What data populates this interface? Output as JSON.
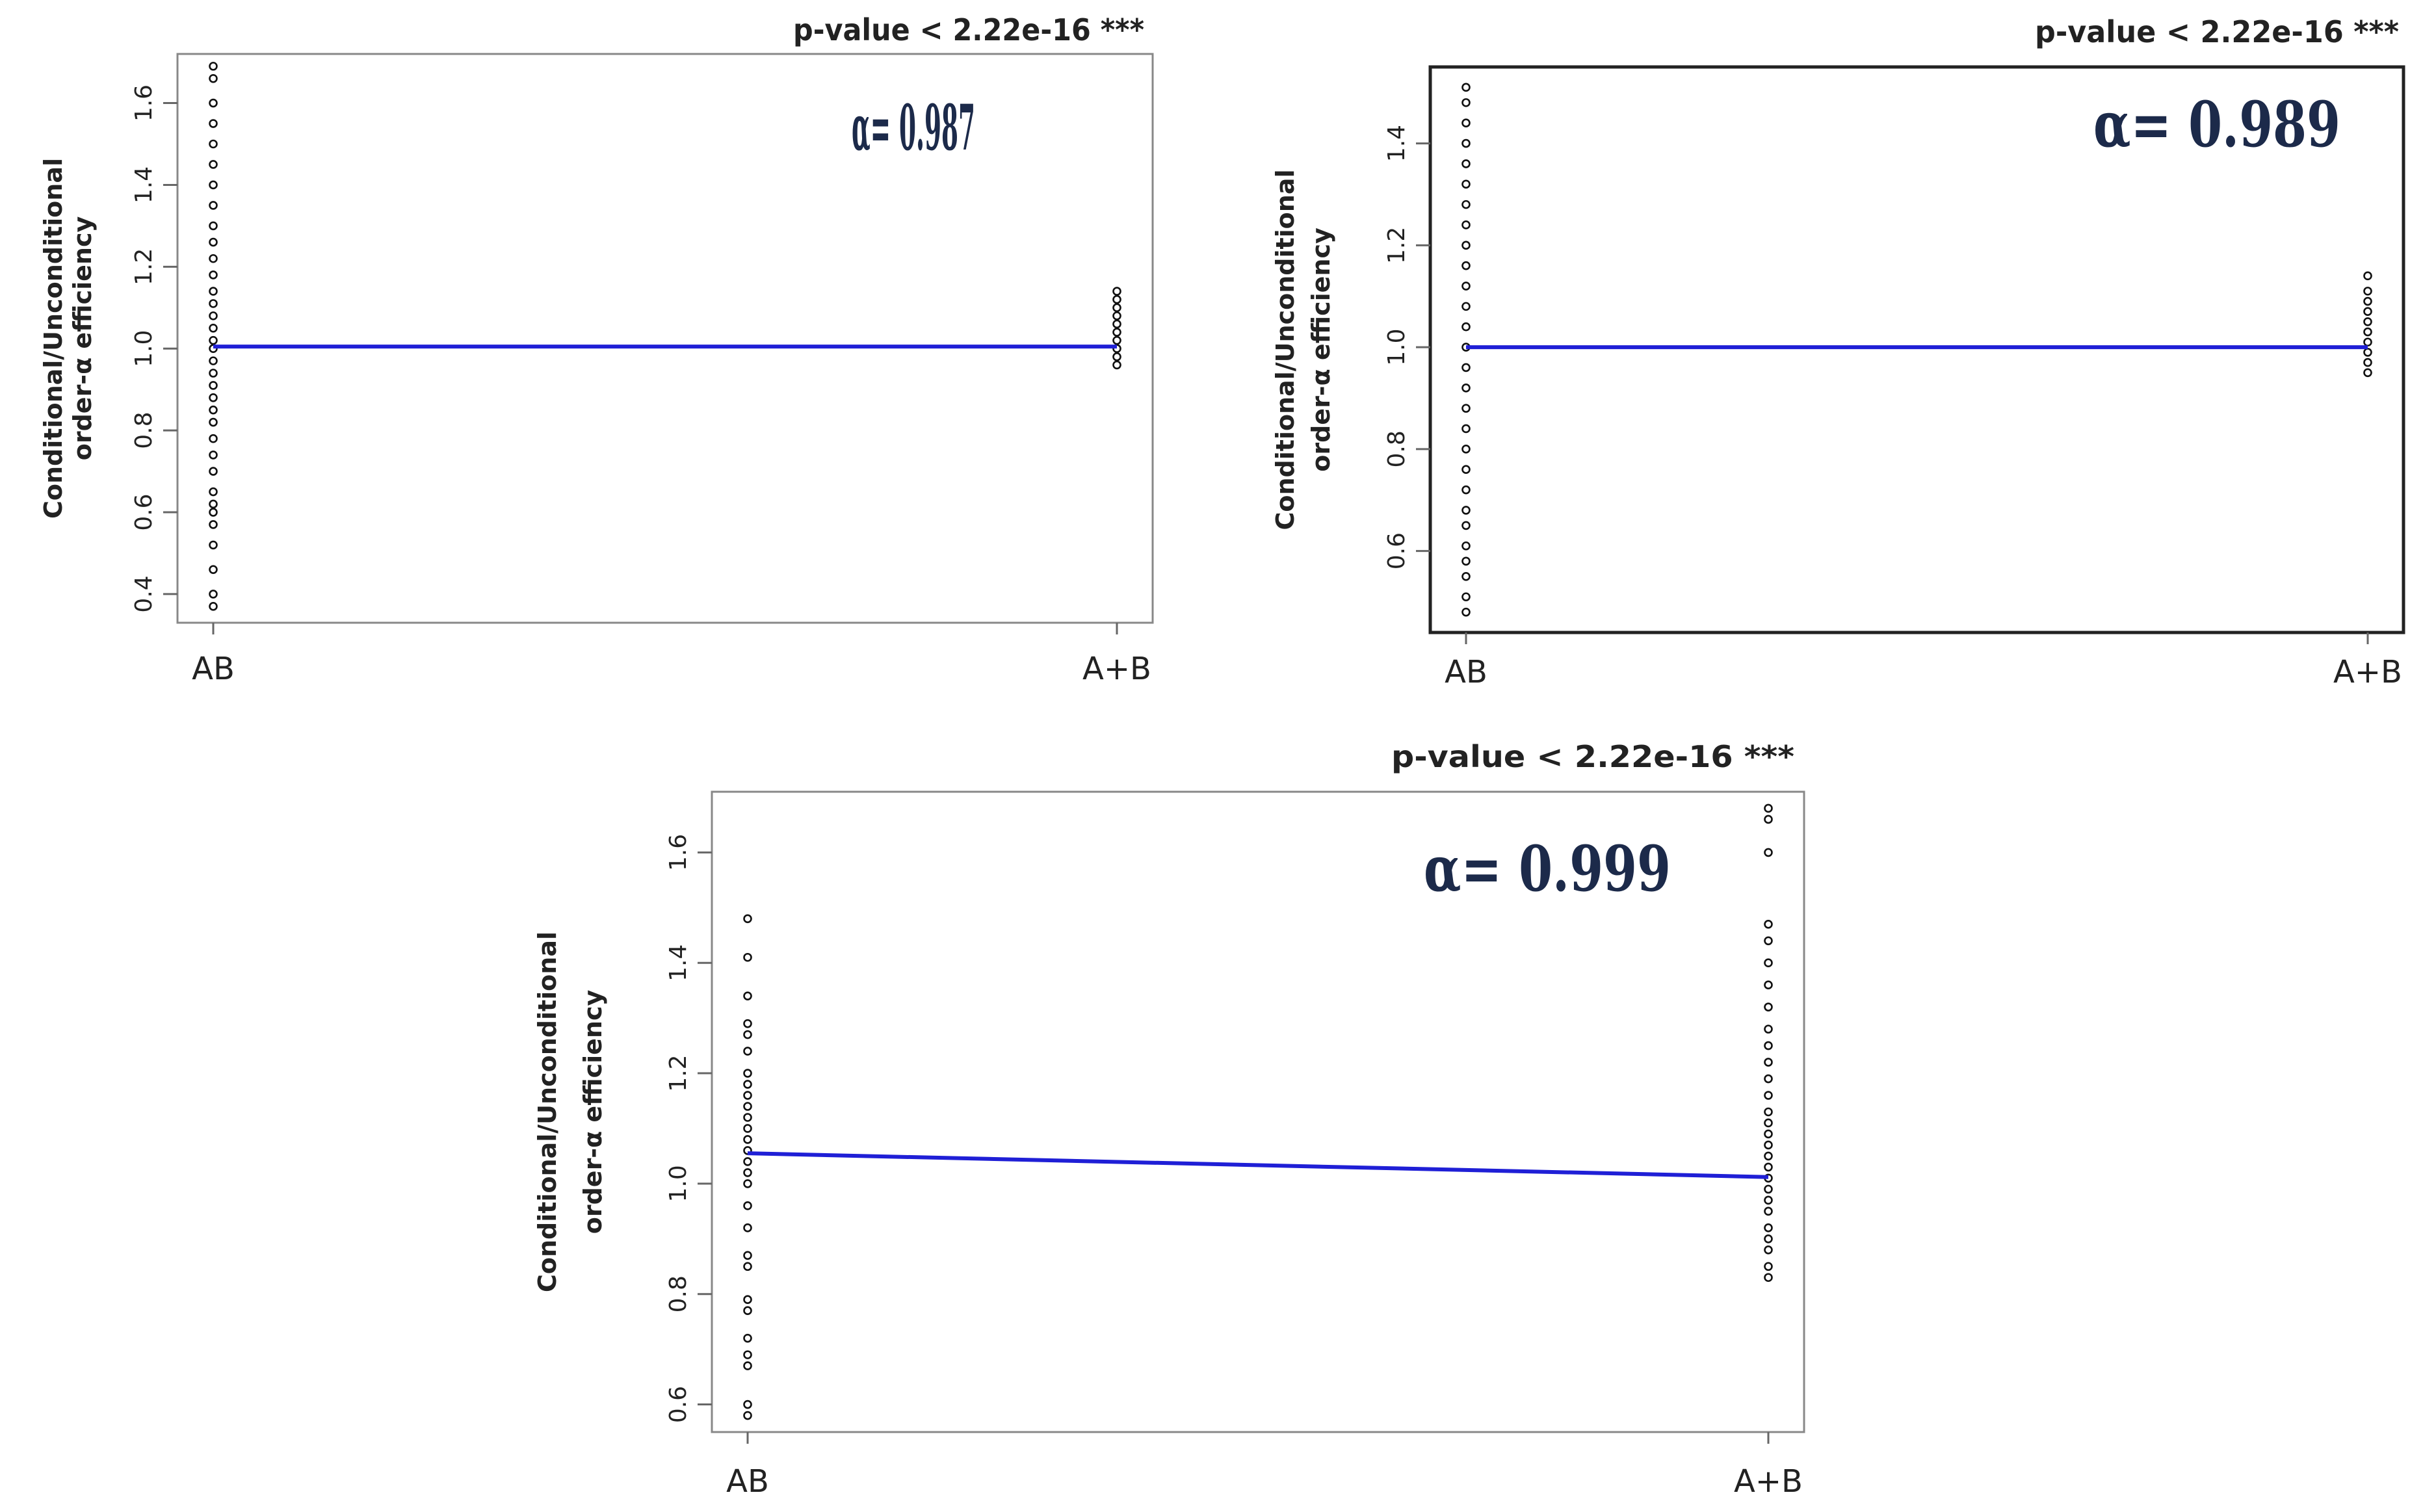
{
  "chart_data": [
    {
      "type": "scatter",
      "title": "p-value < 2.22e-16 ***",
      "annotation": "α= 0.987",
      "ylabel_lines": [
        "Conditional/Unconditional",
        "order-α efficiency"
      ],
      "categories": [
        "AB",
        "A+B"
      ],
      "yticks": [
        "0.4",
        "0.6",
        "0.8",
        "1.0",
        "1.2",
        "1.4",
        "1.6"
      ],
      "ylim": [
        0.33,
        1.72
      ],
      "points": [
        {
          "category": "AB",
          "y": [
            0.37,
            0.4,
            0.46,
            0.52,
            0.57,
            0.6,
            0.62,
            0.65,
            0.7,
            0.74,
            0.78,
            0.82,
            0.85,
            0.88,
            0.91,
            0.94,
            0.97,
            1.0,
            1.02,
            1.05,
            1.08,
            1.11,
            1.14,
            1.18,
            1.22,
            1.26,
            1.3,
            1.35,
            1.4,
            1.45,
            1.5,
            1.55,
            1.6,
            1.66,
            1.69
          ]
        },
        {
          "category": "A+B",
          "y": [
            0.96,
            0.98,
            1.0,
            1.02,
            1.04,
            1.06,
            1.08,
            1.1,
            1.12,
            1.14
          ]
        }
      ],
      "trend_line": {
        "color": "#1f1fd6",
        "y": [
          1.005,
          1.005
        ]
      },
      "frame": "light"
    },
    {
      "type": "scatter",
      "title": "p-value < 2.22e-16 ***",
      "annotation": "α= 0.989",
      "ylabel_lines": [
        "Conditional/Unconditional",
        "order-α efficiency"
      ],
      "categories": [
        "AB",
        "A+B"
      ],
      "yticks": [
        "0.6",
        "0.8",
        "1.0",
        "1.2",
        "1.4"
      ],
      "ylim": [
        0.44,
        1.55
      ],
      "points": [
        {
          "category": "AB",
          "y": [
            0.48,
            0.51,
            0.55,
            0.58,
            0.61,
            0.65,
            0.68,
            0.72,
            0.76,
            0.8,
            0.84,
            0.88,
            0.92,
            0.96,
            1.0,
            1.04,
            1.08,
            1.12,
            1.16,
            1.2,
            1.24,
            1.28,
            1.32,
            1.36,
            1.4,
            1.44,
            1.48,
            1.51
          ]
        },
        {
          "category": "A+B",
          "y": [
            0.95,
            0.97,
            0.99,
            1.01,
            1.03,
            1.05,
            1.07,
            1.09,
            1.11,
            1.14
          ]
        }
      ],
      "trend_line": {
        "color": "#1f1fd6",
        "y": [
          1.0,
          1.0
        ]
      },
      "frame": "dark"
    },
    {
      "type": "scatter",
      "title": "p-value < 2.22e-16 ***",
      "annotation": "α= 0.999",
      "ylabel_lines": [
        "Conditional/Unconditional",
        "order-α efficiency"
      ],
      "categories": [
        "AB",
        "A+B"
      ],
      "yticks": [
        "0.6",
        "0.8",
        "1.0",
        "1.2",
        "1.4",
        "1.6"
      ],
      "ylim": [
        0.55,
        1.71
      ],
      "points": [
        {
          "category": "AB",
          "y": [
            0.58,
            0.6,
            0.67,
            0.69,
            0.72,
            0.77,
            0.79,
            0.85,
            0.87,
            0.92,
            0.96,
            1.0,
            1.02,
            1.04,
            1.06,
            1.08,
            1.1,
            1.12,
            1.14,
            1.16,
            1.18,
            1.2,
            1.24,
            1.27,
            1.29,
            1.34,
            1.41,
            1.48
          ]
        },
        {
          "category": "A+B",
          "y": [
            0.83,
            0.85,
            0.88,
            0.9,
            0.92,
            0.95,
            0.97,
            0.99,
            1.01,
            1.03,
            1.05,
            1.07,
            1.09,
            1.11,
            1.13,
            1.16,
            1.19,
            1.22,
            1.25,
            1.28,
            1.32,
            1.36,
            1.4,
            1.44,
            1.47,
            1.6,
            1.66,
            1.68
          ]
        }
      ],
      "trend_line": {
        "color": "#1f1fd6",
        "y": [
          1.055,
          1.012
        ]
      },
      "frame": "light"
    }
  ]
}
